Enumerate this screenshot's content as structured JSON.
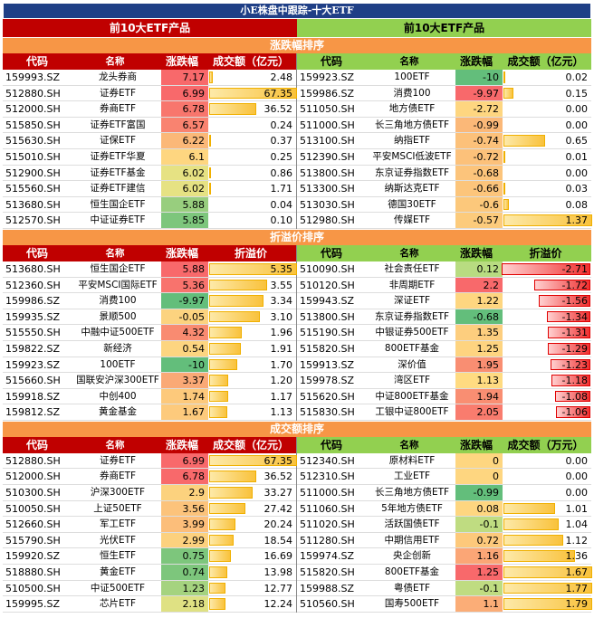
{
  "title": "小E株盘中跟踪-十大ETF",
  "top_labels": [
    "前10大ETF产品",
    "前10大ETF产品"
  ],
  "sections": [
    {
      "title": "涨跌幅排序",
      "left": {
        "headers": [
          "代码",
          "名称",
          "涨跌幅",
          "成交额（亿元）"
        ],
        "rows": [
          {
            "code": "159993.SZ",
            "name": "龙头券商",
            "chg": "7.17",
            "val": "2.48",
            "frac": 0.037,
            "color": "#f8696b"
          },
          {
            "code": "512880.SH",
            "name": "证券ETF",
            "chg": "6.99",
            "val": "67.35",
            "frac": 1.0,
            "color": "#f8696b"
          },
          {
            "code": "512000.SH",
            "name": "券商ETF",
            "chg": "6.78",
            "val": "36.52",
            "frac": 0.54,
            "color": "#f8766d"
          },
          {
            "code": "515850.SH",
            "name": "证券ETF富国",
            "chg": "6.57",
            "val": "0.24",
            "frac": 0.004,
            "color": "#f98370"
          },
          {
            "code": "515630.SH",
            "name": "证保ETF",
            "chg": "6.22",
            "val": "0.37",
            "frac": 0.006,
            "color": "#fbb878"
          },
          {
            "code": "515010.SH",
            "name": "证券ETF华夏",
            "chg": "6.1",
            "val": "0.25",
            "frac": 0.004,
            "color": "#fed680"
          },
          {
            "code": "512900.SH",
            "name": "证券ETF基金",
            "chg": "6.02",
            "val": "0.86",
            "frac": 0.013,
            "color": "#e6e283"
          },
          {
            "code": "515560.SH",
            "name": "证券ETF建信",
            "chg": "6.02",
            "val": "1.71",
            "frac": 0.025,
            "color": "#e6e283"
          },
          {
            "code": "513680.SH",
            "name": "恒生国企ETF",
            "chg": "5.88",
            "val": "0.04",
            "frac": 0.001,
            "color": "#98ce7e"
          },
          {
            "code": "512570.SH",
            "name": "中证证券ETF",
            "chg": "5.85",
            "val": "0.10",
            "frac": 0.002,
            "color": "#7dc67c"
          }
        ]
      },
      "right": {
        "headers": [
          "代码",
          "名称",
          "涨跌幅",
          "成交额（亿元）"
        ],
        "rows": [
          {
            "code": "159923.SZ",
            "name": "100ETF",
            "chg": "-10",
            "val": "0.02",
            "frac": 0.015,
            "color": "#63be7b"
          },
          {
            "code": "159986.SZ",
            "name": "消费100",
            "chg": "-9.97",
            "val": "0.15",
            "frac": 0.11,
            "color": "#f8696b"
          },
          {
            "code": "511050.SH",
            "name": "地方债ETF",
            "chg": "-2.72",
            "val": "0.00",
            "frac": 0.0,
            "color": "#fed680"
          },
          {
            "code": "511000.SH",
            "name": "长三角地方债ETF",
            "chg": "-0.99",
            "val": "0.00",
            "frac": 0.0,
            "color": "#fbb878"
          },
          {
            "code": "513100.SH",
            "name": "纳指ETF",
            "chg": "-0.74",
            "val": "0.65",
            "frac": 0.47,
            "color": "#fcc17a"
          },
          {
            "code": "512390.SH",
            "name": "平安MSCI低波ETF",
            "chg": "-0.72",
            "val": "0.01",
            "frac": 0.007,
            "color": "#fcc17a"
          },
          {
            "code": "513800.SH",
            "name": "东京证券指数ETF",
            "chg": "-0.68",
            "val": "0.00",
            "frac": 0.0,
            "color": "#fcc47b"
          },
          {
            "code": "513300.SH",
            "name": "纳斯达克ETF",
            "chg": "-0.66",
            "val": "0.03",
            "frac": 0.022,
            "color": "#fcc57b"
          },
          {
            "code": "513030.SH",
            "name": "德国30ETF",
            "chg": "-0.6",
            "val": "0.08",
            "frac": 0.058,
            "color": "#fcc87b"
          },
          {
            "code": "512980.SH",
            "name": "传媒ETF",
            "chg": "-0.57",
            "val": "1.37",
            "frac": 1.0,
            "color": "#fccb7c"
          }
        ]
      }
    },
    {
      "title": "折溢价排序",
      "left": {
        "headers": [
          "代码",
          "名称",
          "涨跌幅",
          "折溢价"
        ],
        "rows": [
          {
            "code": "513680.SH",
            "name": "恒生国企ETF",
            "chg": "5.88",
            "val": "5.35",
            "frac": 1.0,
            "color": "#f8696b"
          },
          {
            "code": "512360.SH",
            "name": "平安MSCI国际ETF",
            "chg": "5.36",
            "val": "3.55",
            "frac": 0.66,
            "color": "#f8736d"
          },
          {
            "code": "159986.SZ",
            "name": "消费100",
            "chg": "-9.97",
            "val": "3.34",
            "frac": 0.62,
            "color": "#63be7b"
          },
          {
            "code": "159935.SZ",
            "name": "景顺500",
            "chg": "-0.05",
            "val": "3.10",
            "frac": 0.58,
            "color": "#fcd37f"
          },
          {
            "code": "515550.SH",
            "name": "中融中证500ETF",
            "chg": "4.32",
            "val": "1.96",
            "frac": 0.37,
            "color": "#f98b71"
          },
          {
            "code": "159822.SZ",
            "name": "新经济",
            "chg": "0.54",
            "val": "1.91",
            "frac": 0.36,
            "color": "#fdd580"
          },
          {
            "code": "159923.SZ",
            "name": "100ETF",
            "chg": "-10",
            "val": "1.70",
            "frac": 0.32,
            "color": "#63be7b"
          },
          {
            "code": "515660.SH",
            "name": "国联安沪深300ETF",
            "chg": "3.37",
            "val": "1.20",
            "frac": 0.22,
            "color": "#faa976"
          },
          {
            "code": "159918.SZ",
            "name": "中创400",
            "chg": "1.74",
            "val": "1.17",
            "frac": 0.22,
            "color": "#fdc97b"
          },
          {
            "code": "159812.SZ",
            "name": "黄金基金",
            "chg": "1.67",
            "val": "1.13",
            "frac": 0.21,
            "color": "#fdca7c"
          }
        ]
      },
      "right": {
        "headers": [
          "代码",
          "名称",
          "涨跌幅",
          "折溢价"
        ],
        "rows": [
          {
            "code": "510090.SH",
            "name": "社会责任ETF",
            "chg": "0.12",
            "val": "-2.71",
            "frac": 1.0,
            "color": "#b8dc81"
          },
          {
            "code": "510120.SH",
            "name": "非周期ETF",
            "chg": "2.2",
            "val": "-1.72",
            "frac": 0.63,
            "color": "#f8696b"
          },
          {
            "code": "159943.SZ",
            "name": "深证ETF",
            "chg": "1.22",
            "val": "-1.56",
            "frac": 0.58,
            "color": "#fed680"
          },
          {
            "code": "513800.SH",
            "name": "东京证券指数ETF",
            "chg": "-0.68",
            "val": "-1.34",
            "frac": 0.49,
            "color": "#63be7b"
          },
          {
            "code": "515190.SH",
            "name": "中银证券500ETF",
            "chg": "1.35",
            "val": "-1.31",
            "frac": 0.48,
            "color": "#fdce7e"
          },
          {
            "code": "515820.SH",
            "name": "800ETF基金",
            "chg": "1.25",
            "val": "-1.29",
            "frac": 0.48,
            "color": "#fed480"
          },
          {
            "code": "159913.SZ",
            "name": "深价值",
            "chg": "1.95",
            "val": "-1.23",
            "frac": 0.45,
            "color": "#f98e72"
          },
          {
            "code": "159978.SZ",
            "name": "湾区ETF",
            "chg": "1.13",
            "val": "-1.18",
            "frac": 0.44,
            "color": "#ffdb81"
          },
          {
            "code": "515620.SH",
            "name": "中证800ETF基金",
            "chg": "1.94",
            "val": "-1.08",
            "frac": 0.4,
            "color": "#f98e72"
          },
          {
            "code": "515830.SH",
            "name": "工银中证800ETF",
            "chg": "2.05",
            "val": "-1.06",
            "frac": 0.39,
            "color": "#f97c6e"
          }
        ]
      }
    },
    {
      "title": "成交额排序",
      "left": {
        "headers": [
          "代码",
          "名称",
          "涨跌幅",
          "成交额（亿元）"
        ],
        "rows": [
          {
            "code": "512880.SH",
            "name": "证券ETF",
            "chg": "6.99",
            "val": "67.35",
            "frac": 1.0,
            "color": "#f8696b"
          },
          {
            "code": "512000.SH",
            "name": "券商ETF",
            "chg": "6.78",
            "val": "36.52",
            "frac": 0.54,
            "color": "#f8696b"
          },
          {
            "code": "510300.SH",
            "name": "沪深300ETF",
            "chg": "2.9",
            "val": "33.27",
            "frac": 0.49,
            "color": "#fcd27e"
          },
          {
            "code": "510050.SH",
            "name": "上证50ETF",
            "chg": "3.56",
            "val": "27.42",
            "frac": 0.41,
            "color": "#fcc37b"
          },
          {
            "code": "512660.SH",
            "name": "军工ETF",
            "chg": "3.99",
            "val": "20.24",
            "frac": 0.3,
            "color": "#fcbe7a"
          },
          {
            "code": "515790.SH",
            "name": "光伏ETF",
            "chg": "2.99",
            "val": "18.54",
            "frac": 0.275,
            "color": "#fcd17e"
          },
          {
            "code": "159920.SZ",
            "name": "恒生ETF",
            "chg": "0.75",
            "val": "16.69",
            "frac": 0.248,
            "color": "#7dc67c"
          },
          {
            "code": "518880.SH",
            "name": "黄金ETF",
            "chg": "0.74",
            "val": "13.98",
            "frac": 0.208,
            "color": "#7dc67c"
          },
          {
            "code": "510500.SH",
            "name": "中证500ETF",
            "chg": "1.23",
            "val": "12.77",
            "frac": 0.19,
            "color": "#a5d37f"
          },
          {
            "code": "159995.SZ",
            "name": "芯片ETF",
            "chg": "2.18",
            "val": "12.24",
            "frac": 0.182,
            "color": "#dfe183"
          }
        ]
      },
      "right": {
        "headers": [
          "代码",
          "名称",
          "涨跌幅",
          "成交额（万元）"
        ],
        "rows": [
          {
            "code": "512340.SH",
            "name": "原材料ETF",
            "chg": "0",
            "val": "0.00",
            "frac": 0.0,
            "color": "#fed680"
          },
          {
            "code": "512310.SH",
            "name": "工业ETF",
            "chg": "0",
            "val": "0.00",
            "frac": 0.0,
            "color": "#fed680"
          },
          {
            "code": "511000.SH",
            "name": "长三角地方债ETF",
            "chg": "-0.99",
            "val": "0.00",
            "frac": 0.0,
            "color": "#63be7b"
          },
          {
            "code": "511060.SH",
            "name": "5年地方债ETF",
            "chg": "0.08",
            "val": "1.01",
            "frac": 0.58,
            "color": "#fed680"
          },
          {
            "code": "511020.SH",
            "name": "活跃国债ETF",
            "chg": "-0.1",
            "val": "1.04",
            "frac": 0.62,
            "color": "#bfdc81"
          },
          {
            "code": "511280.SH",
            "name": "中期信用ETF",
            "chg": "0.72",
            "val": "1.12",
            "frac": 0.67,
            "color": "#fdc97b"
          },
          {
            "code": "159974.SZ",
            "name": "央企创新",
            "chg": "1.16",
            "val": "1.36",
            "frac": 0.81,
            "color": "#fba676"
          },
          {
            "code": "515820.SH",
            "name": "800ETF基金",
            "chg": "1.25",
            "val": "1.67",
            "frac": 1.0,
            "color": "#f8696b"
          },
          {
            "code": "159988.SZ",
            "name": "粤债ETF",
            "chg": "-0.1",
            "val": "1.77",
            "frac": 1.0,
            "color": "#bfdc81"
          },
          {
            "code": "510560.SH",
            "name": "国寿500ETF",
            "chg": "1.1",
            "val": "1.79",
            "frac": 1.0,
            "color": "#fbad77"
          }
        ]
      }
    }
  ],
  "colors": {
    "banner": "#1f3f86",
    "left_header": "#c00000",
    "right_header": "#92d050",
    "section": "#f79646"
  }
}
